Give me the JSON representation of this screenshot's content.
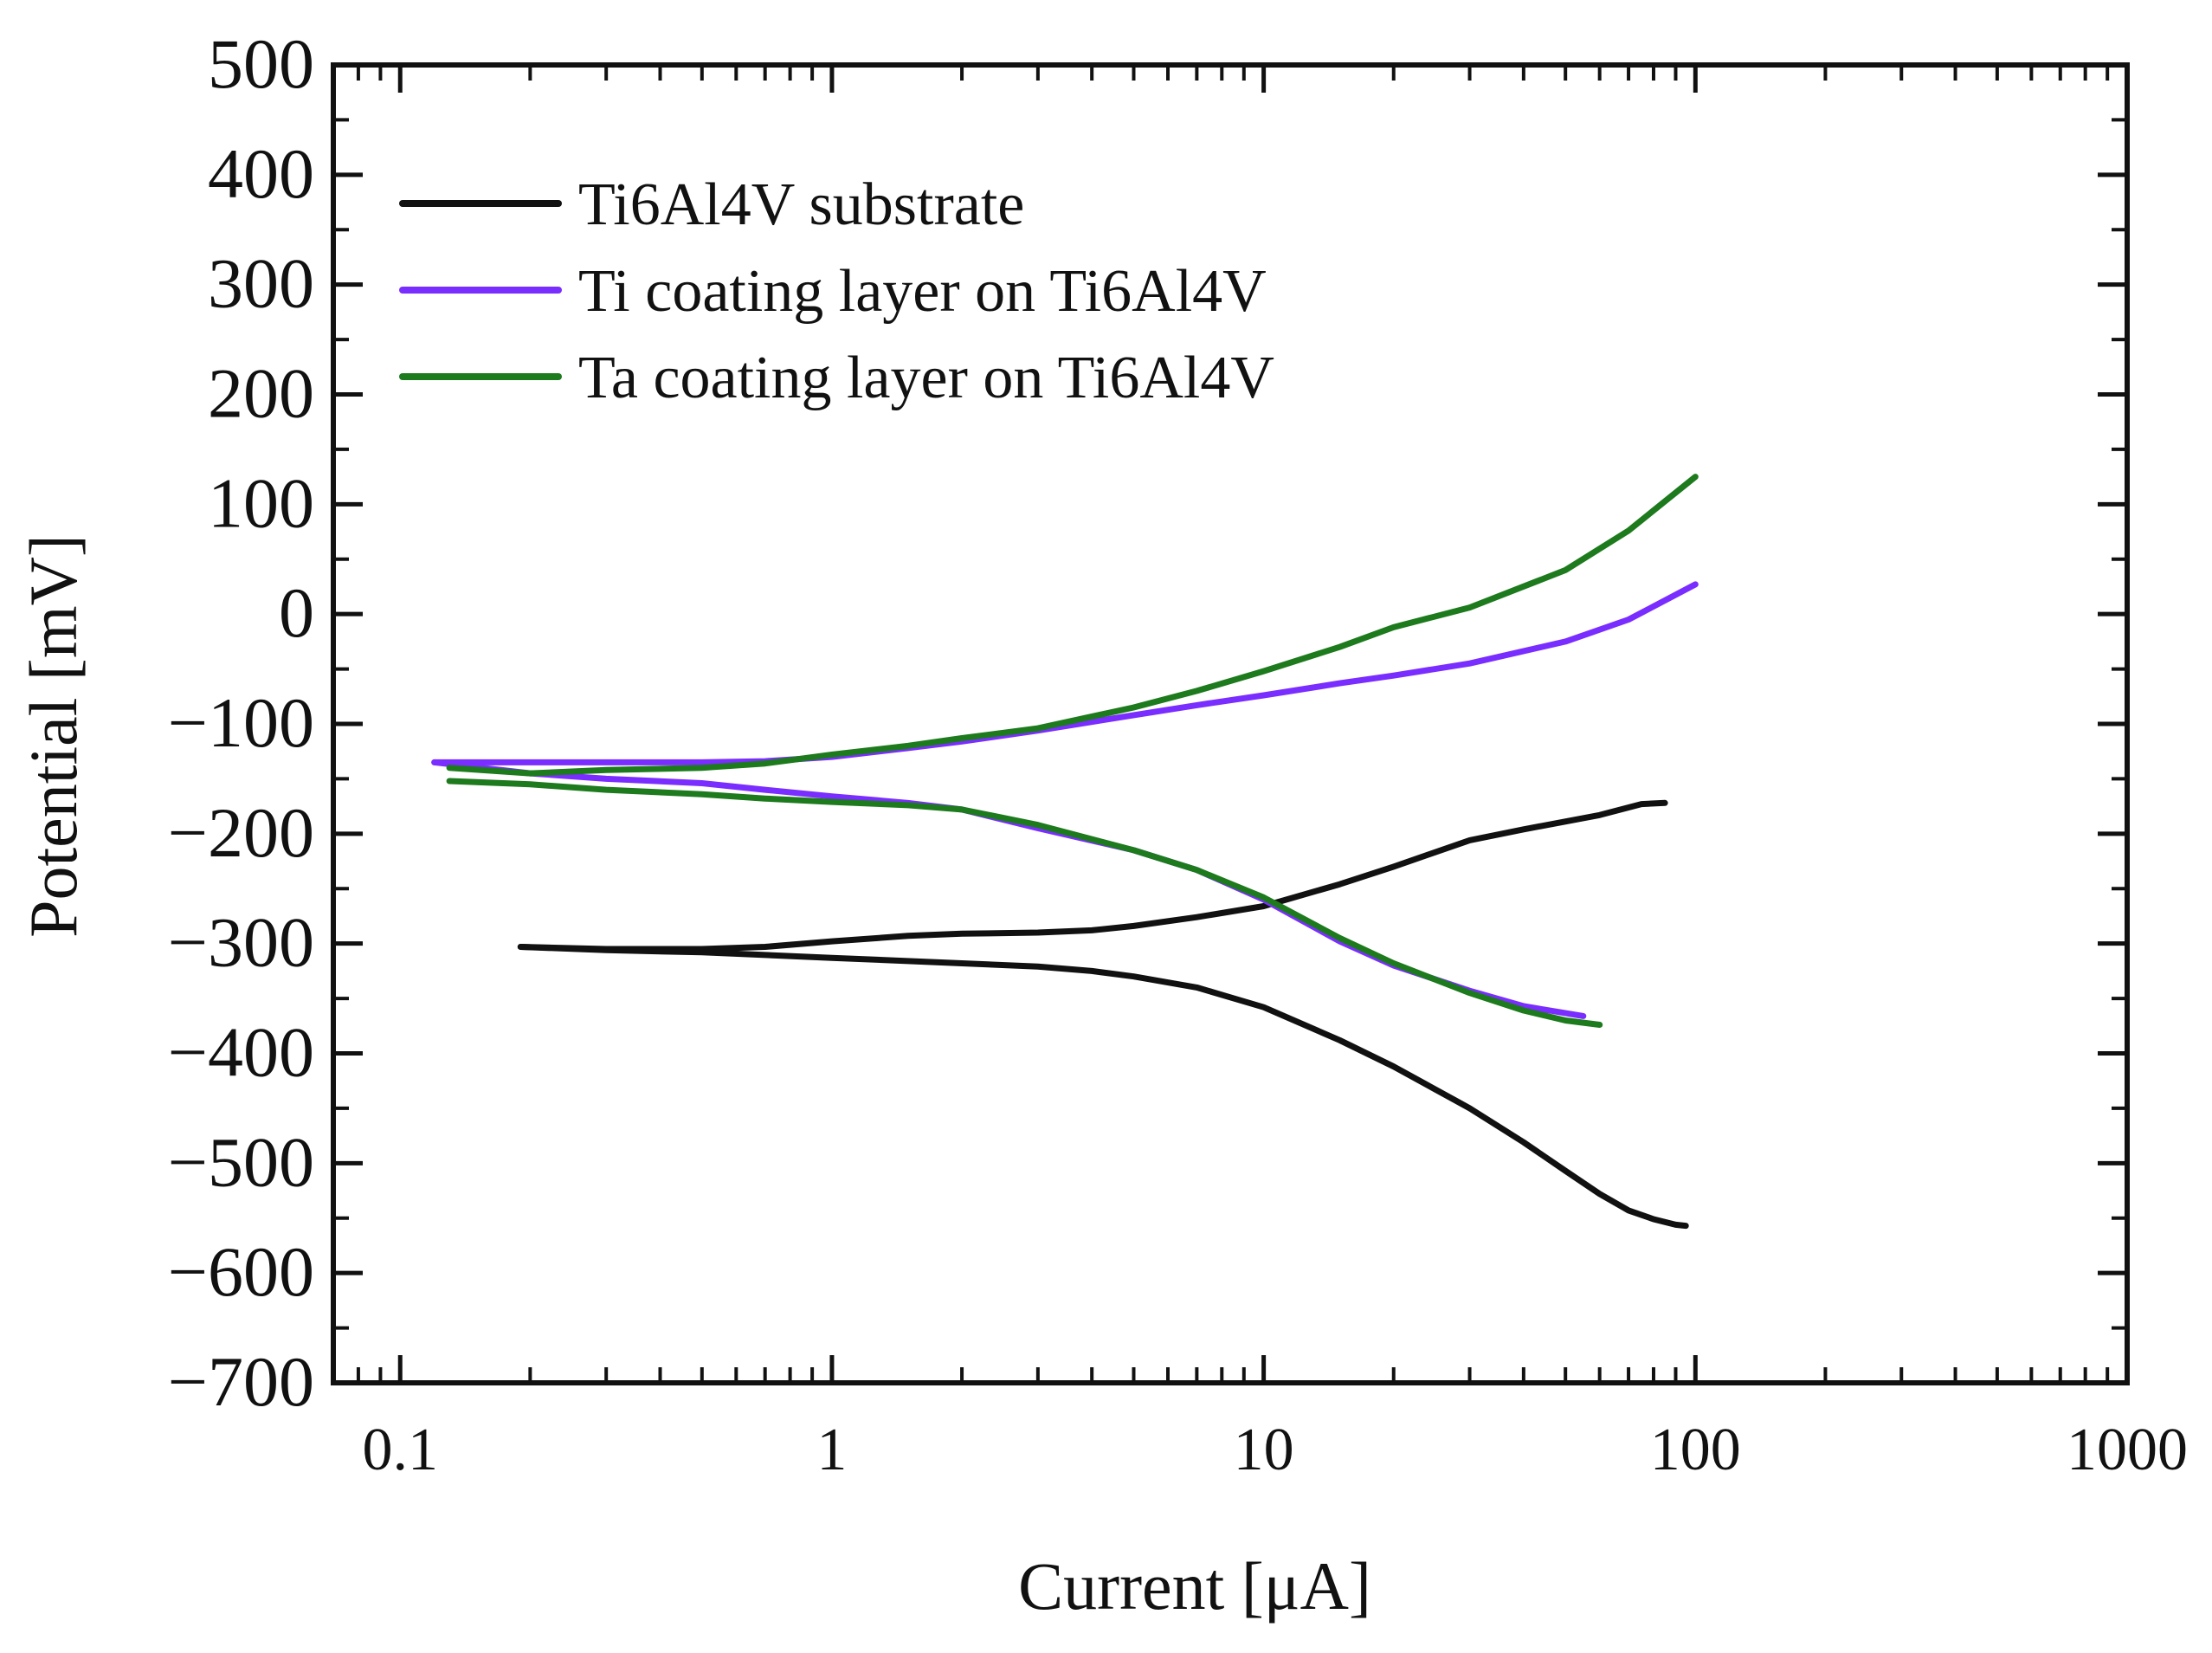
{
  "chart_data": {
    "type": "line",
    "title": "",
    "xlabel": "Current [μA]",
    "ylabel": "Potential [mV]",
    "x_scale": "log",
    "xlim": [
      0.07,
      1000
    ],
    "ylim": [
      -700,
      500
    ],
    "x_ticks": [
      {
        "value": 0.1,
        "label": "0.1"
      },
      {
        "value": 1,
        "label": "1"
      },
      {
        "value": 10,
        "label": "10"
      },
      {
        "value": 100,
        "label": "100"
      },
      {
        "value": 1000,
        "label": "1000"
      }
    ],
    "y_ticks": [
      {
        "value": 500,
        "label": "500"
      },
      {
        "value": 400,
        "label": "400"
      },
      {
        "value": 300,
        "label": "300"
      },
      {
        "value": 200,
        "label": "200"
      },
      {
        "value": 100,
        "label": "100"
      },
      {
        "value": 0,
        "label": "0"
      },
      {
        "value": -100,
        "label": "−100"
      },
      {
        "value": -200,
        "label": "−200"
      },
      {
        "value": -300,
        "label": "−300"
      },
      {
        "value": -400,
        "label": "−400"
      },
      {
        "value": -500,
        "label": "−500"
      },
      {
        "value": -600,
        "label": "−600"
      },
      {
        "value": -700,
        "label": "−700"
      }
    ],
    "grid": false,
    "legend_position": "top-left",
    "series": [
      {
        "name": "Ti6Al4V substrate",
        "color": "#111111",
        "branches": [
          {
            "branch": "anodic",
            "x": [
              0.19,
              0.3,
              0.5,
              0.7,
              1,
              1.5,
              2,
              3,
              4,
              5,
              7,
              10,
              15,
              20,
              30,
              40,
              60,
              75,
              85
            ],
            "y": [
              -303,
              -305,
              -305,
              -303,
              -298,
              -293,
              -291,
              -290,
              -288,
              -284,
              -276,
              -266,
              -246,
              -230,
              -206,
              -196,
              -183,
              -173,
              -172
            ]
          },
          {
            "branch": "cathodic",
            "x": [
              0.19,
              0.3,
              0.5,
              1,
              2,
              3,
              4,
              5,
              7,
              10,
              15,
              20,
              30,
              40,
              50,
              60,
              70,
              80,
              90,
              95
            ],
            "y": [
              -303,
              -306,
              -308,
              -313,
              -318,
              -321,
              -325,
              -330,
              -340,
              -358,
              -388,
              -412,
              -450,
              -481,
              -507,
              -528,
              -543,
              -551,
              -556,
              -557
            ]
          }
        ]
      },
      {
        "name": "Ti coating layer on Ti6Al4V",
        "color": "#7a2dff",
        "branches": [
          {
            "branch": "anodic",
            "x": [
              0.12,
              0.2,
              0.3,
              0.5,
              0.7,
              1,
              1.5,
              2,
              3,
              5,
              7,
              10,
              15,
              20,
              30,
              50,
              70,
              100
            ],
            "y": [
              -135,
              -135,
              -135,
              -135,
              -134,
              -130,
              -122,
              -116,
              -106,
              -92,
              -83,
              -74,
              -63,
              -56,
              -45,
              -25,
              -5,
              27
            ]
          },
          {
            "branch": "cathodic",
            "x": [
              0.12,
              0.2,
              0.3,
              0.5,
              0.7,
              1,
              1.5,
              2,
              3,
              5,
              7,
              10,
              15,
              20,
              30,
              40,
              55
            ],
            "y": [
              -135,
              -145,
              -150,
              -154,
              -160,
              -166,
              -172,
              -178,
              -195,
              -215,
              -233,
              -260,
              -298,
              -320,
              -343,
              -357,
              -366
            ]
          }
        ]
      },
      {
        "name": "Ta coating layer on Ti6Al4V",
        "color": "#1d7a1d",
        "branches": [
          {
            "branch": "anodic",
            "x": [
              0.13,
              0.2,
              0.3,
              0.5,
              0.7,
              1,
              1.5,
              2,
              3,
              5,
              7,
              10,
              15,
              20,
              30,
              50,
              70,
              100
            ],
            "y": [
              -140,
              -145,
              -142,
              -140,
              -136,
              -128,
              -120,
              -113,
              -104,
              -85,
              -70,
              -52,
              -30,
              -12,
              6,
              40,
              76,
              125
            ]
          },
          {
            "branch": "cathodic",
            "x": [
              0.13,
              0.2,
              0.3,
              0.5,
              0.7,
              1,
              1.5,
              2,
              3,
              5,
              7,
              10,
              15,
              20,
              30,
              40,
              50,
              60
            ],
            "y": [
              -152,
              -155,
              -160,
              -164,
              -168,
              -171,
              -174,
              -178,
              -192,
              -215,
              -233,
              -258,
              -295,
              -318,
              -345,
              -361,
              -370,
              -374
            ]
          }
        ]
      }
    ]
  }
}
